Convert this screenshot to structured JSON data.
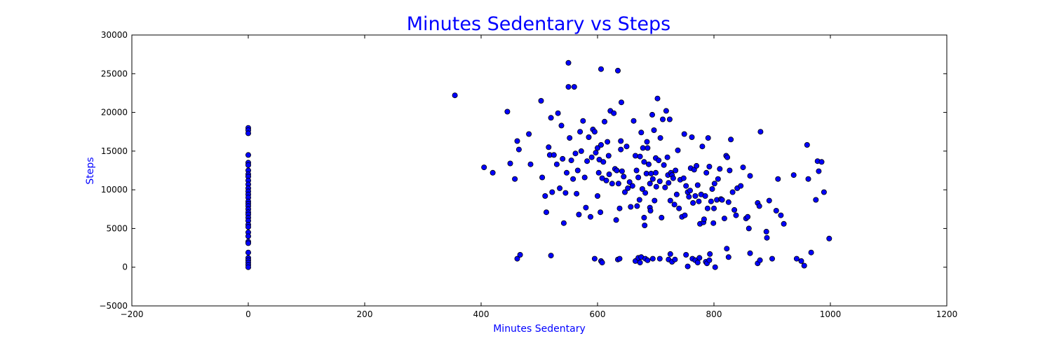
{
  "chart_data": {
    "type": "scatter",
    "title": "Minutes Sedentary vs Steps",
    "xlabel": "Minutes Sedentary",
    "ylabel": "Steps",
    "xlim": [
      -200,
      1200
    ],
    "ylim": [
      -5000,
      30000
    ],
    "xticks": [
      -200,
      0,
      200,
      400,
      600,
      800,
      1000,
      1200
    ],
    "xtick_labels": [
      "−200",
      "0",
      "200",
      "400",
      "600",
      "800",
      "1000",
      "1200"
    ],
    "yticks": [
      -5000,
      0,
      5000,
      10000,
      15000,
      20000,
      25000,
      30000
    ],
    "ytick_labels": [
      "−5000",
      "0",
      "5000",
      "10000",
      "15000",
      "20000",
      "25000",
      "30000"
    ],
    "grid": false,
    "colors": {
      "title": "#0000ff",
      "axis_label": "#0000ff",
      "marker_fill": "#0000ff",
      "marker_edge": "#000000"
    },
    "points": [
      [
        0,
        18000
      ],
      [
        0,
        17700
      ],
      [
        0,
        17300
      ],
      [
        0,
        14500
      ],
      [
        0,
        13500
      ],
      [
        0,
        13200
      ],
      [
        0,
        12500
      ],
      [
        0,
        12000
      ],
      [
        0,
        11700
      ],
      [
        0,
        11200
      ],
      [
        0,
        10700
      ],
      [
        0,
        10200
      ],
      [
        0,
        9800
      ],
      [
        0,
        9400
      ],
      [
        0,
        9000
      ],
      [
        0,
        8500
      ],
      [
        0,
        8200
      ],
      [
        0,
        7900
      ],
      [
        0,
        7500
      ],
      [
        0,
        7100
      ],
      [
        0,
        6800
      ],
      [
        0,
        6400
      ],
      [
        0,
        6000
      ],
      [
        0,
        5500
      ],
      [
        0,
        5200
      ],
      [
        0,
        4500
      ],
      [
        0,
        4000
      ],
      [
        0,
        3300
      ],
      [
        0,
        3100
      ],
      [
        0,
        1900
      ],
      [
        0,
        1200
      ],
      [
        0,
        900
      ],
      [
        0,
        600
      ],
      [
        0,
        300
      ],
      [
        0,
        0
      ],
      [
        355,
        22200
      ],
      [
        405,
        12900
      ],
      [
        420,
        12200
      ],
      [
        445,
        20100
      ],
      [
        450,
        13400
      ],
      [
        458,
        11400
      ],
      [
        462,
        16300
      ],
      [
        465,
        15200
      ],
      [
        482,
        17200
      ],
      [
        485,
        13300
      ],
      [
        503,
        21500
      ],
      [
        505,
        11600
      ],
      [
        510,
        9200
      ],
      [
        512,
        7100
      ],
      [
        516,
        15500
      ],
      [
        518,
        14500
      ],
      [
        520,
        19300
      ],
      [
        522,
        9700
      ],
      [
        525,
        14500
      ],
      [
        530,
        13300
      ],
      [
        532,
        19900
      ],
      [
        535,
        10200
      ],
      [
        538,
        18300
      ],
      [
        540,
        14000
      ],
      [
        542,
        5700
      ],
      [
        545,
        9600
      ],
      [
        547,
        12200
      ],
      [
        550,
        26400
      ],
      [
        550,
        23300
      ],
      [
        552,
        16700
      ],
      [
        555,
        13800
      ],
      [
        558,
        11400
      ],
      [
        560,
        23300
      ],
      [
        562,
        14700
      ],
      [
        564,
        9500
      ],
      [
        566,
        12500
      ],
      [
        568,
        6800
      ],
      [
        570,
        17500
      ],
      [
        572,
        15000
      ],
      [
        575,
        18900
      ],
      [
        578,
        11600
      ],
      [
        580,
        7700
      ],
      [
        582,
        13700
      ],
      [
        585,
        16800
      ],
      [
        588,
        6500
      ],
      [
        590,
        14200
      ],
      [
        592,
        17800
      ],
      [
        595,
        17500
      ],
      [
        597,
        14800
      ],
      [
        600,
        15400
      ],
      [
        600,
        9200
      ],
      [
        602,
        12200
      ],
      [
        603,
        13900
      ],
      [
        605,
        7100
      ],
      [
        606,
        25600
      ],
      [
        606,
        15800
      ],
      [
        608,
        11500
      ],
      [
        610,
        13600
      ],
      [
        612,
        18800
      ],
      [
        615,
        11200
      ],
      [
        617,
        16200
      ],
      [
        619,
        14400
      ],
      [
        620,
        12000
      ],
      [
        622,
        20200
      ],
      [
        625,
        10800
      ],
      [
        628,
        19900
      ],
      [
        630,
        12700
      ],
      [
        632,
        6100
      ],
      [
        633,
        12500
      ],
      [
        635,
        25400
      ],
      [
        636,
        10800
      ],
      [
        638,
        7600
      ],
      [
        640,
        16300
      ],
      [
        640,
        15200
      ],
      [
        641,
        21300
      ],
      [
        642,
        12400
      ],
      [
        645,
        11700
      ],
      [
        647,
        9700
      ],
      [
        650,
        15600
      ],
      [
        652,
        10200
      ],
      [
        655,
        11000
      ],
      [
        657,
        7800
      ],
      [
        660,
        10500
      ],
      [
        662,
        18900
      ],
      [
        665,
        14400
      ],
      [
        667,
        12500
      ],
      [
        668,
        7900
      ],
      [
        670,
        11600
      ],
      [
        672,
        8700
      ],
      [
        673,
        14300
      ],
      [
        675,
        17400
      ],
      [
        677,
        10100
      ],
      [
        678,
        15400
      ],
      [
        680,
        13600
      ],
      [
        680,
        6400
      ],
      [
        681,
        5400
      ],
      [
        682,
        9600
      ],
      [
        684,
        12100
      ],
      [
        685,
        16200
      ],
      [
        686,
        15400
      ],
      [
        688,
        13300
      ],
      [
        690,
        10800
      ],
      [
        690,
        7700
      ],
      [
        691,
        7300
      ],
      [
        692,
        12100
      ],
      [
        694,
        19700
      ],
      [
        695,
        11400
      ],
      [
        697,
        17700
      ],
      [
        698,
        8600
      ],
      [
        700,
        14100
      ],
      [
        700,
        12200
      ],
      [
        701,
        10400
      ],
      [
        703,
        21800
      ],
      [
        705,
        13800
      ],
      [
        707,
        11100
      ],
      [
        708,
        16700
      ],
      [
        710,
        6400
      ],
      [
        712,
        19100
      ],
      [
        714,
        13200
      ],
      [
        716,
        10300
      ],
      [
        718,
        20200
      ],
      [
        720,
        14200
      ],
      [
        721,
        11900
      ],
      [
        722,
        10900
      ],
      [
        724,
        19100
      ],
      [
        725,
        8600
      ],
      [
        726,
        12200
      ],
      [
        728,
        11900
      ],
      [
        730,
        11500
      ],
      [
        732,
        8100
      ],
      [
        734,
        12500
      ],
      [
        736,
        9400
      ],
      [
        738,
        15100
      ],
      [
        740,
        7600
      ],
      [
        742,
        11300
      ],
      [
        745,
        6500
      ],
      [
        748,
        11500
      ],
      [
        749,
        17200
      ],
      [
        750,
        6700
      ],
      [
        752,
        10500
      ],
      [
        755,
        9700
      ],
      [
        757,
        9100
      ],
      [
        759,
        9900
      ],
      [
        760,
        12800
      ],
      [
        762,
        16800
      ],
      [
        764,
        8300
      ],
      [
        766,
        12600
      ],
      [
        768,
        9200
      ],
      [
        770,
        13100
      ],
      [
        772,
        10600
      ],
      [
        774,
        8500
      ],
      [
        776,
        5600
      ],
      [
        778,
        9400
      ],
      [
        780,
        15600
      ],
      [
        782,
        5800
      ],
      [
        783,
        6200
      ],
      [
        785,
        9200
      ],
      [
        787,
        12200
      ],
      [
        789,
        7600
      ],
      [
        790,
        16700
      ],
      [
        792,
        13000
      ],
      [
        795,
        8500
      ],
      [
        797,
        10100
      ],
      [
        799,
        5700
      ],
      [
        800,
        7600
      ],
      [
        801,
        10800
      ],
      [
        805,
        8700
      ],
      [
        807,
        11400
      ],
      [
        810,
        12700
      ],
      [
        812,
        8800
      ],
      [
        814,
        8700
      ],
      [
        818,
        6300
      ],
      [
        821,
        14400
      ],
      [
        823,
        14200
      ],
      [
        825,
        8400
      ],
      [
        827,
        12500
      ],
      [
        829,
        16500
      ],
      [
        832,
        9700
      ],
      [
        835,
        7400
      ],
      [
        838,
        6700
      ],
      [
        840,
        10200
      ],
      [
        846,
        10500
      ],
      [
        850,
        12900
      ],
      [
        855,
        6300
      ],
      [
        858,
        6500
      ],
      [
        860,
        5000
      ],
      [
        862,
        11800
      ],
      [
        875,
        8300
      ],
      [
        878,
        7900
      ],
      [
        880,
        17500
      ],
      [
        890,
        4600
      ],
      [
        891,
        3800
      ],
      [
        895,
        8600
      ],
      [
        907,
        7300
      ],
      [
        910,
        11400
      ],
      [
        915,
        6700
      ],
      [
        920,
        5600
      ],
      [
        937,
        11900
      ],
      [
        960,
        15800
      ],
      [
        962,
        11400
      ],
      [
        975,
        8700
      ],
      [
        978,
        13700
      ],
      [
        980,
        12400
      ],
      [
        985,
        13600
      ],
      [
        989,
        9700
      ],
      [
        998,
        3700
      ],
      [
        462,
        1100
      ],
      [
        467,
        1600
      ],
      [
        520,
        1500
      ],
      [
        595,
        1100
      ],
      [
        606,
        800
      ],
      [
        608,
        600
      ],
      [
        635,
        1000
      ],
      [
        638,
        1100
      ],
      [
        665,
        800
      ],
      [
        670,
        1200
      ],
      [
        673,
        600
      ],
      [
        675,
        1300
      ],
      [
        682,
        1100
      ],
      [
        686,
        900
      ],
      [
        695,
        1100
      ],
      [
        707,
        1100
      ],
      [
        722,
        1000
      ],
      [
        725,
        1700
      ],
      [
        728,
        700
      ],
      [
        733,
        1000
      ],
      [
        752,
        1600
      ],
      [
        755,
        100
      ],
      [
        763,
        1100
      ],
      [
        768,
        900
      ],
      [
        772,
        600
      ],
      [
        775,
        1200
      ],
      [
        786,
        700
      ],
      [
        788,
        500
      ],
      [
        792,
        900
      ],
      [
        793,
        1700
      ],
      [
        802,
        0
      ],
      [
        822,
        2400
      ],
      [
        825,
        1300
      ],
      [
        862,
        1800
      ],
      [
        875,
        500
      ],
      [
        879,
        900
      ],
      [
        900,
        1100
      ],
      [
        942,
        1100
      ],
      [
        950,
        800
      ],
      [
        955,
        200
      ],
      [
        967,
        1900
      ]
    ]
  }
}
